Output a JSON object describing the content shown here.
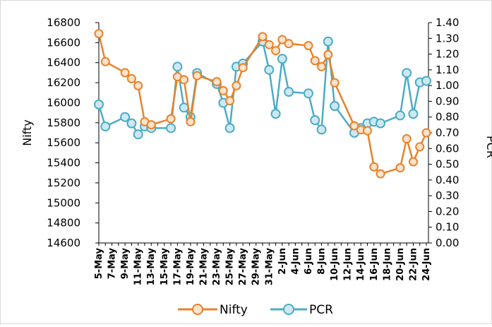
{
  "chart_data": {
    "type": "line",
    "xlabel": "",
    "ylabel": "Nifty",
    "y2label": "PCR",
    "ylim": [
      14600,
      16800
    ],
    "y2lim": [
      0.0,
      1.4
    ],
    "grid": false,
    "legend_position": "bottom",
    "x_tick_labels": [
      "5-May",
      "7-May",
      "9-May",
      "11-May",
      "13-May",
      "15-May",
      "17-May",
      "19-May",
      "21-May",
      "23-May",
      "25-May",
      "27-May",
      "29-May",
      "31-May",
      "2-Jun",
      "4-Jun",
      "6-Jun",
      "8-Jun",
      "10-Jun",
      "12-Jun",
      "14-Jun",
      "16-Jun",
      "18-Jun",
      "20-Jun",
      "22-Jun",
      "24-Jun"
    ],
    "y_ticks": [
      14600,
      14800,
      15000,
      15200,
      15400,
      15600,
      15800,
      16000,
      16200,
      16400,
      16600,
      16800
    ],
    "y2_ticks": [
      "0.00",
      "0.10",
      "0.20",
      "0.30",
      "0.40",
      "0.50",
      "0.60",
      "0.70",
      "0.80",
      "0.90",
      "1.00",
      "1.10",
      "1.20",
      "1.30",
      "1.40"
    ],
    "series": [
      {
        "name": "Nifty",
        "color": "#E8822A",
        "axis": "left",
        "points": [
          [
            "5-May",
            16690
          ],
          [
            "6-May",
            16410
          ],
          [
            "9-May",
            16300
          ],
          [
            "10-May",
            16240
          ],
          [
            "11-May",
            16170
          ],
          [
            "12-May",
            15810
          ],
          [
            "13-May",
            15780
          ],
          [
            "16-May",
            15840
          ],
          [
            "17-May",
            16260
          ],
          [
            "18-May",
            16230
          ],
          [
            "19-May",
            15810
          ],
          [
            "20-May",
            16270
          ],
          [
            "23-May",
            16210
          ],
          [
            "24-May",
            16120
          ],
          [
            "25-May",
            16020
          ],
          [
            "26-May",
            16170
          ],
          [
            "27-May",
            16350
          ],
          [
            "30-May",
            16660
          ],
          [
            "31-May",
            16580
          ],
          [
            "1-Jun",
            16520
          ],
          [
            "2-Jun",
            16630
          ],
          [
            "3-Jun",
            16590
          ],
          [
            "6-Jun",
            16570
          ],
          [
            "7-Jun",
            16420
          ],
          [
            "8-Jun",
            16360
          ],
          [
            "9-Jun",
            16480
          ],
          [
            "10-Jun",
            16200
          ],
          [
            "13-Jun",
            15770
          ],
          [
            "14-Jun",
            15730
          ],
          [
            "15-Jun",
            15720
          ],
          [
            "16-Jun",
            15360
          ],
          [
            "17-Jun",
            15290
          ],
          [
            "20-Jun",
            15350
          ],
          [
            "21-Jun",
            15640
          ],
          [
            "22-Jun",
            15410
          ],
          [
            "23-Jun",
            15560
          ],
          [
            "24-Jun",
            15700
          ]
        ]
      },
      {
        "name": "PCR",
        "color": "#4BACC6",
        "axis": "right",
        "points": [
          [
            "5-May",
            0.88
          ],
          [
            "6-May",
            0.74
          ],
          [
            "9-May",
            0.8
          ],
          [
            "10-May",
            0.76
          ],
          [
            "11-May",
            0.69
          ],
          [
            "12-May",
            0.74
          ],
          [
            "13-May",
            0.73
          ],
          [
            "16-May",
            0.73
          ],
          [
            "17-May",
            1.12
          ],
          [
            "18-May",
            0.86
          ],
          [
            "19-May",
            0.8
          ],
          [
            "20-May",
            1.08
          ],
          [
            "23-May",
            1.01
          ],
          [
            "24-May",
            0.89
          ],
          [
            "25-May",
            0.73
          ],
          [
            "26-May",
            1.12
          ],
          [
            "27-May",
            1.14
          ],
          [
            "30-May",
            1.28
          ],
          [
            "31-May",
            1.1
          ],
          [
            "1-Jun",
            0.82
          ],
          [
            "2-Jun",
            1.17
          ],
          [
            "3-Jun",
            0.96
          ],
          [
            "6-Jun",
            0.95
          ],
          [
            "7-Jun",
            0.78
          ],
          [
            "8-Jun",
            0.72
          ],
          [
            "9-Jun",
            1.28
          ],
          [
            "10-Jun",
            0.87
          ],
          [
            "13-Jun",
            0.7
          ],
          [
            "14-Jun",
            0.73
          ],
          [
            "15-Jun",
            0.76
          ],
          [
            "16-Jun",
            0.77
          ],
          [
            "17-Jun",
            0.76
          ],
          [
            "20-Jun",
            0.81
          ],
          [
            "21-Jun",
            1.08
          ],
          [
            "22-Jun",
            0.82
          ],
          [
            "23-Jun",
            1.02
          ],
          [
            "24-Jun",
            1.03
          ]
        ]
      }
    ]
  }
}
